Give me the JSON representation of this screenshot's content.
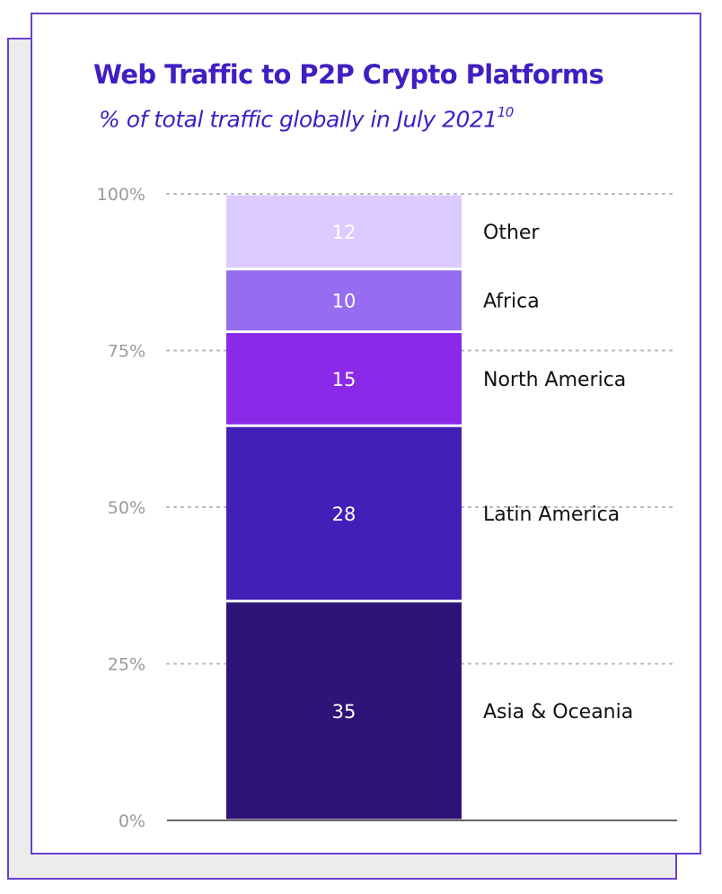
{
  "chart_data": {
    "type": "bar",
    "stacked": true,
    "title": "Web Traffic to P2P Crypto Platforms",
    "subtitle": "% of total traffic globally in July 2021",
    "subtitle_note": "10",
    "ylim": [
      0,
      100
    ],
    "yticks": [
      "0%",
      "25%",
      "50%",
      "75%",
      "100%"
    ],
    "ytick_values": [
      0,
      25,
      50,
      75,
      100
    ],
    "gridlines": "dotted",
    "segments": [
      {
        "name": "Asia & Oceania",
        "value": 35,
        "label": "35",
        "color": "#2e1479"
      },
      {
        "name": "Latin America",
        "value": 28,
        "label": "28",
        "color": "#4220b8"
      },
      {
        "name": "North America",
        "value": 15,
        "label": "15",
        "color": "#8a2ae8"
      },
      {
        "name": "Africa",
        "value": 10,
        "label": "10",
        "color": "#966df0"
      },
      {
        "name": "Other",
        "value": 12,
        "label": "12",
        "color": "#dccbff"
      }
    ]
  }
}
